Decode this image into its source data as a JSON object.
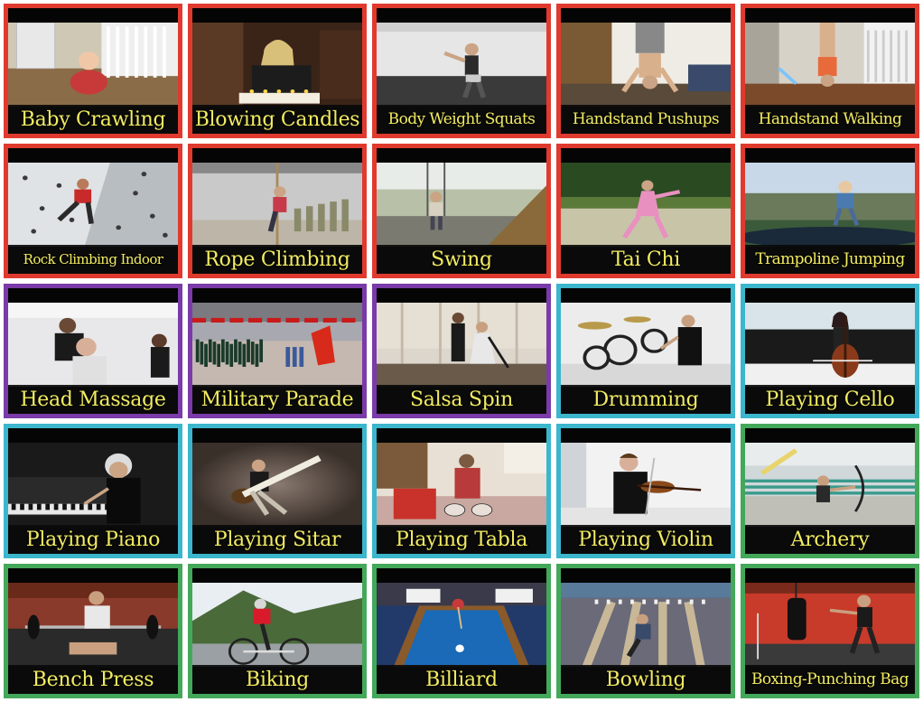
{
  "colors": {
    "red": "#e03a2f",
    "purple": "#7a3aa8",
    "cyan": "#3bb6cc",
    "green": "#44a85a",
    "caption_text": "#f2ec62"
  },
  "tiles": [
    {
      "label": "Baby Crawling",
      "border": "red",
      "scene": "indoor-crawl"
    },
    {
      "label": "Blowing Candles",
      "border": "red",
      "scene": "dark-room-cake"
    },
    {
      "label": "Body Weight Squats",
      "border": "red",
      "scene": "gym-squat"
    },
    {
      "label": "Handstand Pushups",
      "border": "red",
      "scene": "room-handstand"
    },
    {
      "label": "Handstand Walking",
      "border": "red",
      "scene": "hallway-handstand"
    },
    {
      "label": "Rock Climbing Indoor",
      "border": "red",
      "scene": "climbing-wall"
    },
    {
      "label": "Rope Climbing",
      "border": "red",
      "scene": "gym-rope"
    },
    {
      "label": "Swing",
      "border": "red",
      "scene": "playground-swing"
    },
    {
      "label": "Tai Chi",
      "border": "red",
      "scene": "field-taichi"
    },
    {
      "label": "Trampoline Jumping",
      "border": "red",
      "scene": "outdoor-trampoline"
    },
    {
      "label": "Head Massage",
      "border": "purple",
      "scene": "salon-massage"
    },
    {
      "label": "Military Parade",
      "border": "purple",
      "scene": "parade-ground"
    },
    {
      "label": "Salsa Spin",
      "border": "purple",
      "scene": "dance-hall"
    },
    {
      "label": "Drumming",
      "border": "cyan",
      "scene": "drum-kit"
    },
    {
      "label": "Playing Cello",
      "border": "cyan",
      "scene": "cello-piano"
    },
    {
      "label": "Playing Piano",
      "border": "cyan",
      "scene": "dark-piano"
    },
    {
      "label": "Playing Sitar",
      "border": "cyan",
      "scene": "sitar-floor"
    },
    {
      "label": "Playing Tabla",
      "border": "cyan",
      "scene": "tabla-room"
    },
    {
      "label": "Playing Violin",
      "border": "cyan",
      "scene": "violin-studio"
    },
    {
      "label": "Archery",
      "border": "green",
      "scene": "archery-range"
    },
    {
      "label": "Bench Press",
      "border": "green",
      "scene": "bench-gym"
    },
    {
      "label": "Biking",
      "border": "green",
      "scene": "mountain-road"
    },
    {
      "label": "Billiard",
      "border": "green",
      "scene": "pool-table"
    },
    {
      "label": "Bowling",
      "border": "green",
      "scene": "bowling-alley"
    },
    {
      "label": "Boxing-Punching Bag",
      "border": "green",
      "scene": "boxing-gym"
    }
  ]
}
